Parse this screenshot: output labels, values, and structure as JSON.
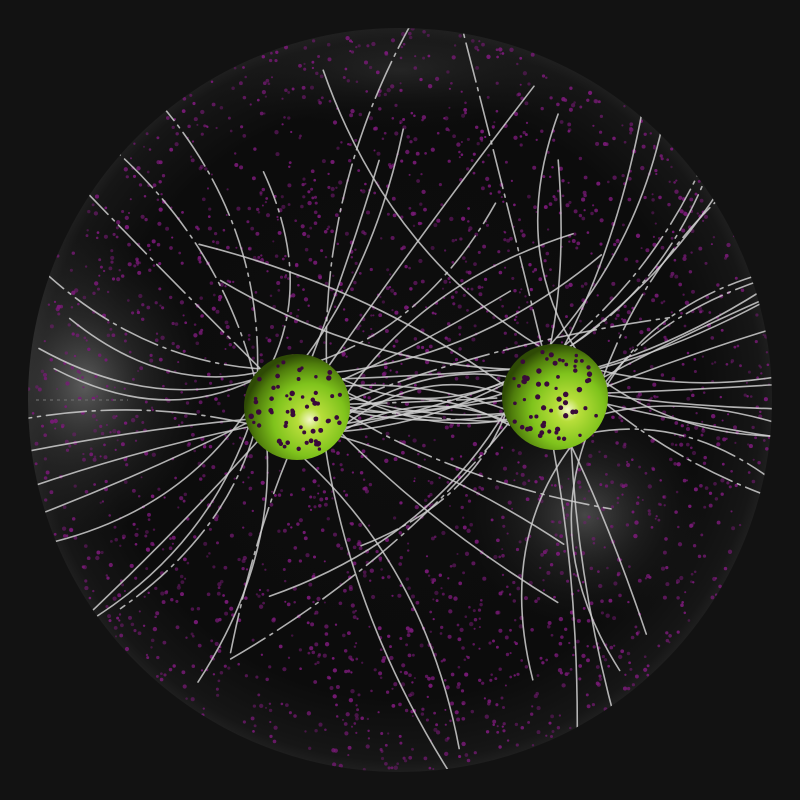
{
  "scene": {
    "background": "#121212",
    "sphere_fill": "#0d0d0d",
    "sphere_glow": "#8a8a8a",
    "field_line_color": "#cfcfcf",
    "particle_color": "#7a1a78",
    "pole_particle_color": "#3a0a3a",
    "pole_color": "#7fc31c",
    "pole_highlight": "#f4f7c8",
    "pole_shadow": "#2e4a05",
    "field_lines_per_pole": 34,
    "particle_count": 2600,
    "pole_particle_count": 60
  }
}
